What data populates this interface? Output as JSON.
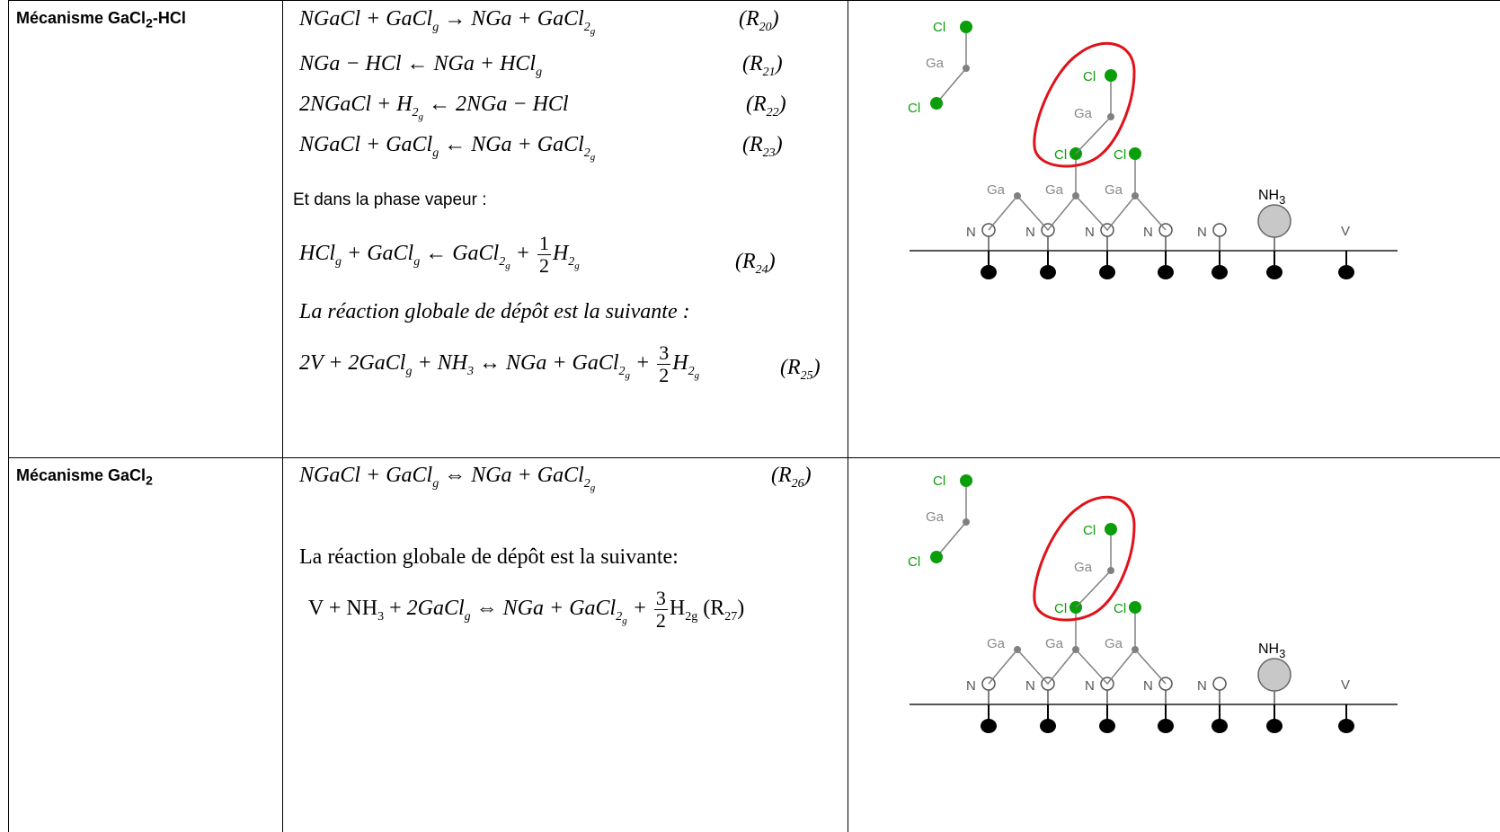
{
  "rows": [
    {
      "label": "Mécanisme GaCl",
      "label_sub": "2",
      "label_tail": "-HCl",
      "equations": [
        {
          "lhs": "NGaCl + GaCl",
          "tag": "(R",
          "tag_sub": "20",
          "tag_tail": ")"
        },
        {
          "lhs": "NGa − HCl ← NGa + HCl",
          "tag": "(R",
          "tag_sub": "21",
          "tag_tail": ")"
        },
        {
          "lhs": "2NGaCl + H",
          "tag": "(R",
          "tag_sub": "22",
          "tag_tail": ")"
        },
        {
          "lhs": "NGaCl + GaCl",
          "tag": "(R",
          "tag_sub": "23",
          "tag_tail": ")"
        }
      ],
      "vapor_text": "Et dans la phase vapeur :",
      "r24_tag": "(R",
      "r24_sub": "24",
      "global_text": "La réaction globale de dépôt est la suivante :",
      "r25_tag": "(R",
      "r25_sub": "25"
    },
    {
      "label": "Mécanisme GaCl",
      "label_sub": "2",
      "r26_tag": "(R",
      "r26_sub": "26",
      "global_text": "La réaction globale de dépôt est la suivante:",
      "r27_tag": "(R",
      "r27_sub": "27"
    }
  ],
  "diagram": {
    "labels": {
      "cl": "Cl",
      "ga": "Ga",
      "n": "N",
      "nh3": "NH",
      "nh3_sub": "3",
      "v": "V"
    },
    "colors": {
      "chlorine": "#0a9e0a",
      "gallium": "#808080",
      "bond": "#808080",
      "highlight": "#e0121a",
      "nh3_fill": "#c8c8c8",
      "substrate": "#000000"
    }
  }
}
